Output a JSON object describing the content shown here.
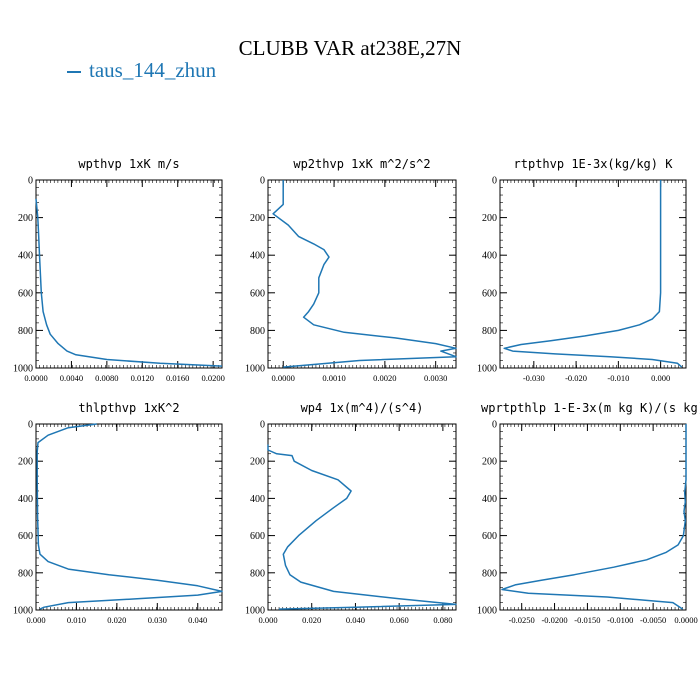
{
  "figure": {
    "title": "CLUBB VAR at238E,27N",
    "legend": [
      {
        "label": "taus_144_zhun",
        "color": "#1f77b4"
      }
    ]
  },
  "chart_data": [
    {
      "type": "line",
      "title": "wpthvp   1xK m/s",
      "xlim": [
        0.0,
        0.021
      ],
      "ylim": [
        1000,
        0
      ],
      "xticks": [
        0,
        0.004,
        0.008,
        0.012,
        0.016,
        0.02
      ],
      "xticklabels": [
        "0.0000",
        "0.0040",
        "0.0080",
        "0.0120",
        "0.0160",
        "0.0200"
      ],
      "yticks": [
        0,
        200,
        400,
        600,
        800,
        1000
      ],
      "yticklabels": [
        "0",
        "200",
        "400",
        "600",
        "800",
        "1000"
      ],
      "series": [
        {
          "name": "taus_144_zhun",
          "color": "#1f77b4",
          "x": [
            0.0,
            0.0001,
            0.0002,
            0.0003,
            0.0004,
            0.0005,
            0.0006,
            0.0008,
            0.0012,
            0.0016,
            0.0025,
            0.0035,
            0.0045,
            0.008,
            0.014,
            0.021
          ],
          "y": [
            100,
            150,
            200,
            300,
            400,
            500,
            600,
            700,
            770,
            820,
            870,
            910,
            930,
            955,
            975,
            990
          ]
        }
      ]
    },
    {
      "type": "line",
      "title": "wp2thvp   1xK m^2/s^2",
      "xlim": [
        -0.0003,
        0.0034
      ],
      "ylim": [
        1000,
        0
      ],
      "xticks": [
        0,
        0.001,
        0.002,
        0.003
      ],
      "xticklabels": [
        "0.0000",
        "0.0010",
        "0.0020",
        "0.0030"
      ],
      "yticks": [
        0,
        200,
        400,
        600,
        800,
        1000
      ],
      "yticklabels": [
        "0",
        "200",
        "400",
        "600",
        "800",
        "1000"
      ],
      "series": [
        {
          "name": "taus_144_zhun",
          "color": "#1f77b4",
          "x": [
            0.0,
            0.0,
            -0.0002,
            0.0001,
            0.0003,
            0.0006,
            0.0008,
            0.0009,
            0.0008,
            0.0007,
            0.0007,
            0.0006,
            0.0005,
            0.0004,
            0.0006,
            0.0012,
            0.0022,
            0.003,
            0.0034,
            0.0031,
            0.0034,
            0.0015,
            0.0
          ],
          "y": [
            0,
            130,
            180,
            240,
            300,
            340,
            370,
            410,
            450,
            520,
            600,
            660,
            700,
            730,
            770,
            810,
            840,
            870,
            895,
            910,
            940,
            960,
            995
          ]
        }
      ]
    },
    {
      "type": "line",
      "title": "rtpthvp   1E-3x(kg/kg) K",
      "xlim": [
        -0.038,
        0.006
      ],
      "ylim": [
        1000,
        0
      ],
      "xticks": [
        -0.03,
        -0.02,
        -0.01,
        0.0
      ],
      "xticklabels": [
        "-0.030",
        "-0.020",
        "-0.010",
        "0.000"
      ],
      "yticks": [
        0,
        200,
        400,
        600,
        800,
        1000
      ],
      "yticklabels": [
        "0",
        "200",
        "400",
        "600",
        "800",
        "1000"
      ],
      "series": [
        {
          "name": "taus_144_zhun",
          "color": "#1f77b4",
          "x": [
            0.0,
            0.0,
            0.0,
            -0.0003,
            -0.002,
            -0.005,
            -0.01,
            -0.018,
            -0.026,
            -0.033,
            -0.037,
            -0.035,
            -0.025,
            -0.012,
            -0.002,
            0.004,
            0.005
          ],
          "y": [
            0,
            300,
            600,
            700,
            740,
            770,
            800,
            830,
            855,
            875,
            895,
            910,
            925,
            940,
            955,
            975,
            995
          ]
        }
      ]
    },
    {
      "type": "line",
      "title": "thlpthvp   1xK^2",
      "xlim": [
        0.0,
        0.046
      ],
      "ylim": [
        1000,
        0
      ],
      "xticks": [
        0,
        0.01,
        0.02,
        0.03,
        0.04
      ],
      "xticklabels": [
        "0.000",
        "0.010",
        "0.020",
        "0.030",
        "0.040"
      ],
      "yticks": [
        0,
        200,
        400,
        600,
        800,
        1000
      ],
      "yticklabels": [
        "0",
        "200",
        "400",
        "600",
        "800",
        "1000"
      ],
      "series": [
        {
          "name": "taus_144_zhun",
          "color": "#1f77b4",
          "x": [
            0.015,
            0.008,
            0.003,
            0.0005,
            0.0003,
            0.0003,
            0.0004,
            0.0006,
            0.001,
            0.003,
            0.008,
            0.018,
            0.03,
            0.04,
            0.046,
            0.04,
            0.025,
            0.008,
            0.002,
            0.001
          ],
          "y": [
            0,
            20,
            60,
            100,
            150,
            300,
            500,
            650,
            700,
            740,
            780,
            810,
            840,
            870,
            900,
            920,
            940,
            960,
            985,
            995
          ]
        }
      ]
    },
    {
      "type": "line",
      "title": "wp4   1x(m^4)/(s^4)",
      "xlim": [
        0.0,
        0.086
      ],
      "ylim": [
        1000,
        0
      ],
      "xticks": [
        0,
        0.02,
        0.04,
        0.06,
        0.08
      ],
      "xticklabels": [
        "0.000",
        "0.020",
        "0.040",
        "0.060",
        "0.080"
      ],
      "yticks": [
        0,
        200,
        400,
        600,
        800,
        1000
      ],
      "yticklabels": [
        "0",
        "200",
        "400",
        "600",
        "800",
        "1000"
      ],
      "series": [
        {
          "name": "taus_144_zhun",
          "color": "#1f77b4",
          "x": [
            0.0,
            0.0,
            0.004,
            0.011,
            0.012,
            0.02,
            0.032,
            0.038,
            0.036,
            0.03,
            0.022,
            0.014,
            0.009,
            0.007,
            0.008,
            0.01,
            0.015,
            0.03,
            0.06,
            0.086,
            0.04,
            0.005
          ],
          "y": [
            110,
            140,
            160,
            170,
            200,
            250,
            300,
            360,
            400,
            450,
            520,
            600,
            660,
            700,
            760,
            810,
            850,
            900,
            940,
            970,
            985,
            995
          ]
        }
      ]
    },
    {
      "type": "line",
      "title": "wprtpthlp   1-E-3x(m kg K)/(s kg)",
      "xlim": [
        -0.0283,
        0.0
      ],
      "ylim": [
        1000,
        0
      ],
      "xticks": [
        -0.025,
        -0.02,
        -0.015,
        -0.01,
        -0.005,
        0.0
      ],
      "xticklabels": [
        "-0.0250",
        "-0.0200",
        "-0.0150",
        "-0.0100",
        "-0.0050",
        "0.0000"
      ],
      "yticks": [
        0,
        200,
        400,
        600,
        800,
        1000
      ],
      "yticklabels": [
        "0",
        "200",
        "400",
        "600",
        "800",
        "1000"
      ],
      "series": [
        {
          "name": "taus_144_zhun",
          "color": "#1f77b4",
          "x": [
            0.0,
            0.0,
            -0.0002,
            -0.0001,
            -0.0003,
            -0.0001,
            -0.0004,
            -0.0012,
            -0.003,
            -0.006,
            -0.011,
            -0.017,
            -0.022,
            -0.026,
            -0.028,
            -0.024,
            -0.012,
            -0.002,
            -0.0005
          ],
          "y": [
            0,
            300,
            370,
            420,
            470,
            520,
            600,
            650,
            690,
            730,
            770,
            810,
            840,
            865,
            890,
            910,
            930,
            960,
            995
          ]
        }
      ]
    }
  ]
}
